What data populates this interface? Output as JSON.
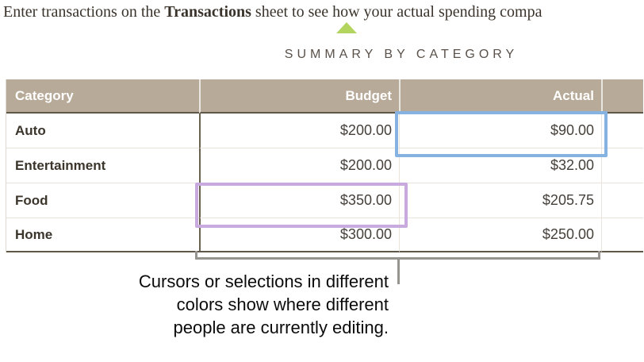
{
  "instruction": {
    "prefix": "Enter transactions on the ",
    "bold_term": "Transactions",
    "suffix": " sheet to see how your actual spending compa"
  },
  "summary": {
    "title": "SUMMARY BY CATEGORY",
    "columns": [
      "Category",
      "Budget",
      "Actual"
    ],
    "rows": [
      {
        "category": "Auto",
        "budget": "$200.00",
        "actual": "$90.00"
      },
      {
        "category": "Entertainment",
        "budget": "$200.00",
        "actual": "$32.00"
      },
      {
        "category": "Food",
        "budget": "$350.00",
        "actual": "$205.75"
      },
      {
        "category": "Home",
        "budget": "$300.00",
        "actual": "$250.00"
      }
    ]
  },
  "collaboration": {
    "selection_colors": [
      "blue",
      "purple"
    ]
  },
  "caption": {
    "lines": [
      "Cursors or selections in different",
      "colors show where different",
      "people are currently editing."
    ]
  },
  "colors": {
    "header_bg": "#b8aa98",
    "selection_blue": "#85b2e0",
    "selection_purple": "#c9aade",
    "callout_green": "#b3d45f",
    "bracket_gray": "#97938f"
  }
}
